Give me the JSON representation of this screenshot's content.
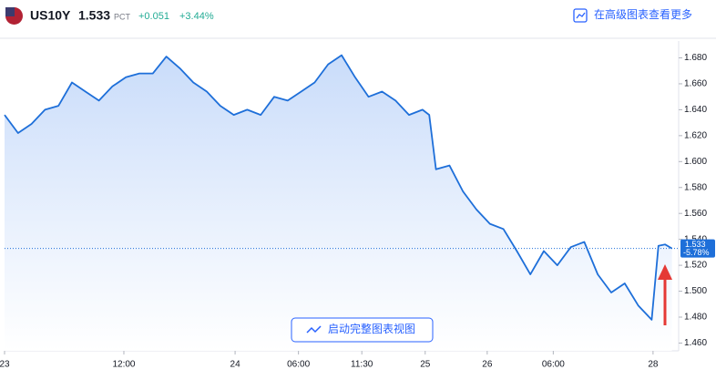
{
  "header": {
    "symbol": "US10Y",
    "price": "1.533",
    "unit": "PCT",
    "change": "+0.051",
    "change_pct": "+3.44%",
    "link": "在高级图表查看更多"
  },
  "button": "启动完整图表视图",
  "chart_data": {
    "type": "line",
    "x": [
      0,
      2,
      4,
      6,
      8,
      10,
      12,
      14,
      16,
      18,
      20,
      22,
      24,
      26,
      28,
      30,
      32,
      34,
      36,
      38,
      40,
      42,
      44,
      46,
      48,
      50,
      52,
      54,
      56,
      58,
      60,
      62,
      63,
      64,
      66,
      68,
      70,
      72,
      74,
      76,
      78,
      80,
      82,
      84,
      86,
      88,
      90,
      92,
      94,
      96,
      97,
      98,
      99
    ],
    "series": [
      {
        "name": "US10Y",
        "color": "#1e6fd9",
        "values": [
          1.636,
          1.622,
          1.629,
          1.64,
          1.643,
          1.661,
          1.654,
          1.647,
          1.658,
          1.665,
          1.668,
          1.668,
          1.681,
          1.672,
          1.661,
          1.654,
          1.643,
          1.636,
          1.64,
          1.636,
          1.65,
          1.647,
          1.654,
          1.661,
          1.675,
          1.682,
          1.665,
          1.65,
          1.654,
          1.647,
          1.636,
          1.64,
          1.636,
          1.594,
          1.597,
          1.577,
          1.563,
          1.552,
          1.548,
          1.531,
          1.513,
          1.531,
          1.52,
          1.534,
          1.538,
          1.513,
          1.499,
          1.506,
          1.489,
          1.478,
          1.535,
          1.536,
          1.533
        ]
      }
    ],
    "xlim": [
      0,
      100
    ],
    "xticks": [
      {
        "value": 0,
        "label": "23"
      },
      {
        "value": 17.7,
        "label": "12:00"
      },
      {
        "value": 34.2,
        "label": "24"
      },
      {
        "value": 43.6,
        "label": "06:00"
      },
      {
        "value": 53,
        "label": "11:30"
      },
      {
        "value": 62.4,
        "label": "25"
      },
      {
        "value": 71.6,
        "label": "26"
      },
      {
        "value": 81.4,
        "label": "06:00"
      },
      {
        "value": 96.2,
        "label": "28"
      }
    ],
    "ylim": [
      1.454,
      1.693
    ],
    "yticks": [
      {
        "value": 1.46,
        "label": "1.460"
      },
      {
        "value": 1.48,
        "label": "1.480"
      },
      {
        "value": 1.5,
        "label": "1.500"
      },
      {
        "value": 1.52,
        "label": "1.520"
      },
      {
        "value": 1.54,
        "label": "1.540"
      },
      {
        "value": 1.56,
        "label": "1.560"
      },
      {
        "value": 1.58,
        "label": "1.580"
      },
      {
        "value": 1.6,
        "label": "1.600"
      },
      {
        "value": 1.62,
        "label": "1.620"
      },
      {
        "value": 1.64,
        "label": "1.640"
      },
      {
        "value": 1.66,
        "label": "1.660"
      },
      {
        "value": 1.68,
        "label": "1.680"
      }
    ],
    "last_value": 1.533,
    "last_label": "1.533",
    "last_change": "-5.78%"
  }
}
